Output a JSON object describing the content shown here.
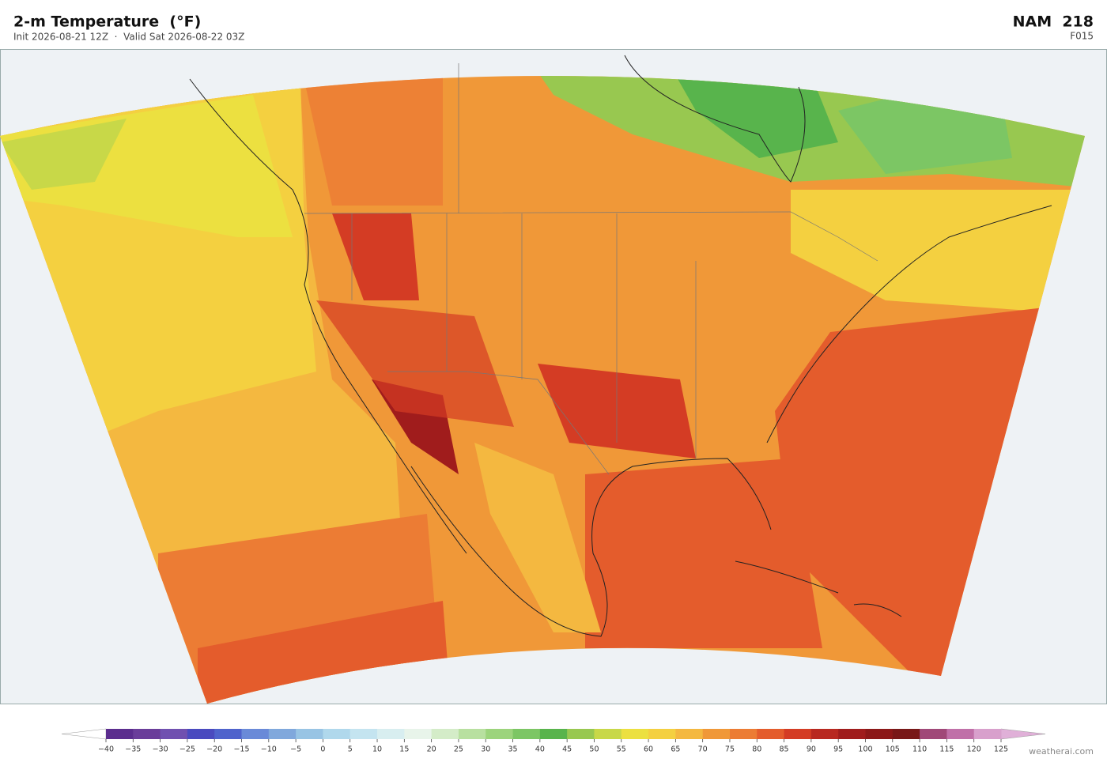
{
  "header": {
    "title": "2-m Temperature  (°F)",
    "subtitle": "Init 2026-08-21 12Z  ·  Valid Sat 2026-08-22 03Z",
    "model": "NAM  218",
    "forecast_hour": "F015"
  },
  "colorbar": {
    "ticks": [
      {
        "value": -40,
        "label": "−40"
      },
      {
        "value": -35,
        "label": "−35"
      },
      {
        "value": -30,
        "label": "−30"
      },
      {
        "value": -25,
        "label": "−25"
      },
      {
        "value": -20,
        "label": "−20"
      },
      {
        "value": -15,
        "label": "−15"
      },
      {
        "value": -10,
        "label": "−10"
      },
      {
        "value": -5,
        "label": "−5"
      },
      0,
      5,
      10,
      15,
      20,
      25,
      30,
      35,
      40,
      45,
      50,
      55,
      60,
      65,
      70,
      75,
      80,
      85,
      90,
      95,
      100,
      105,
      110,
      115,
      120,
      125
    ],
    "colors": [
      "#5b2d8e",
      "#6a3d9a",
      "#7050b0",
      "#4a4abf",
      "#4f63cc",
      "#6a8ad8",
      "#80a8dc",
      "#98c4e4",
      "#b0d8ec",
      "#c4e4f0",
      "#d8eef0",
      "#e8f4ea",
      "#d4ecc8",
      "#b8e0a0",
      "#9cd47c",
      "#7cc664",
      "#58b44c",
      "#98c850",
      "#c8d848",
      "#ece040",
      "#f4d040",
      "#f4b840",
      "#f09838",
      "#ec7c34",
      "#e45c2c",
      "#d43c24",
      "#b82820",
      "#a01c1c",
      "#8c1818",
      "#781818",
      "#a04878",
      "#c070a8",
      "#d8a0cc"
    ],
    "under_color": "#ffffff",
    "over_color": "#e0b0d8"
  },
  "watermark": "weatherai.com"
}
